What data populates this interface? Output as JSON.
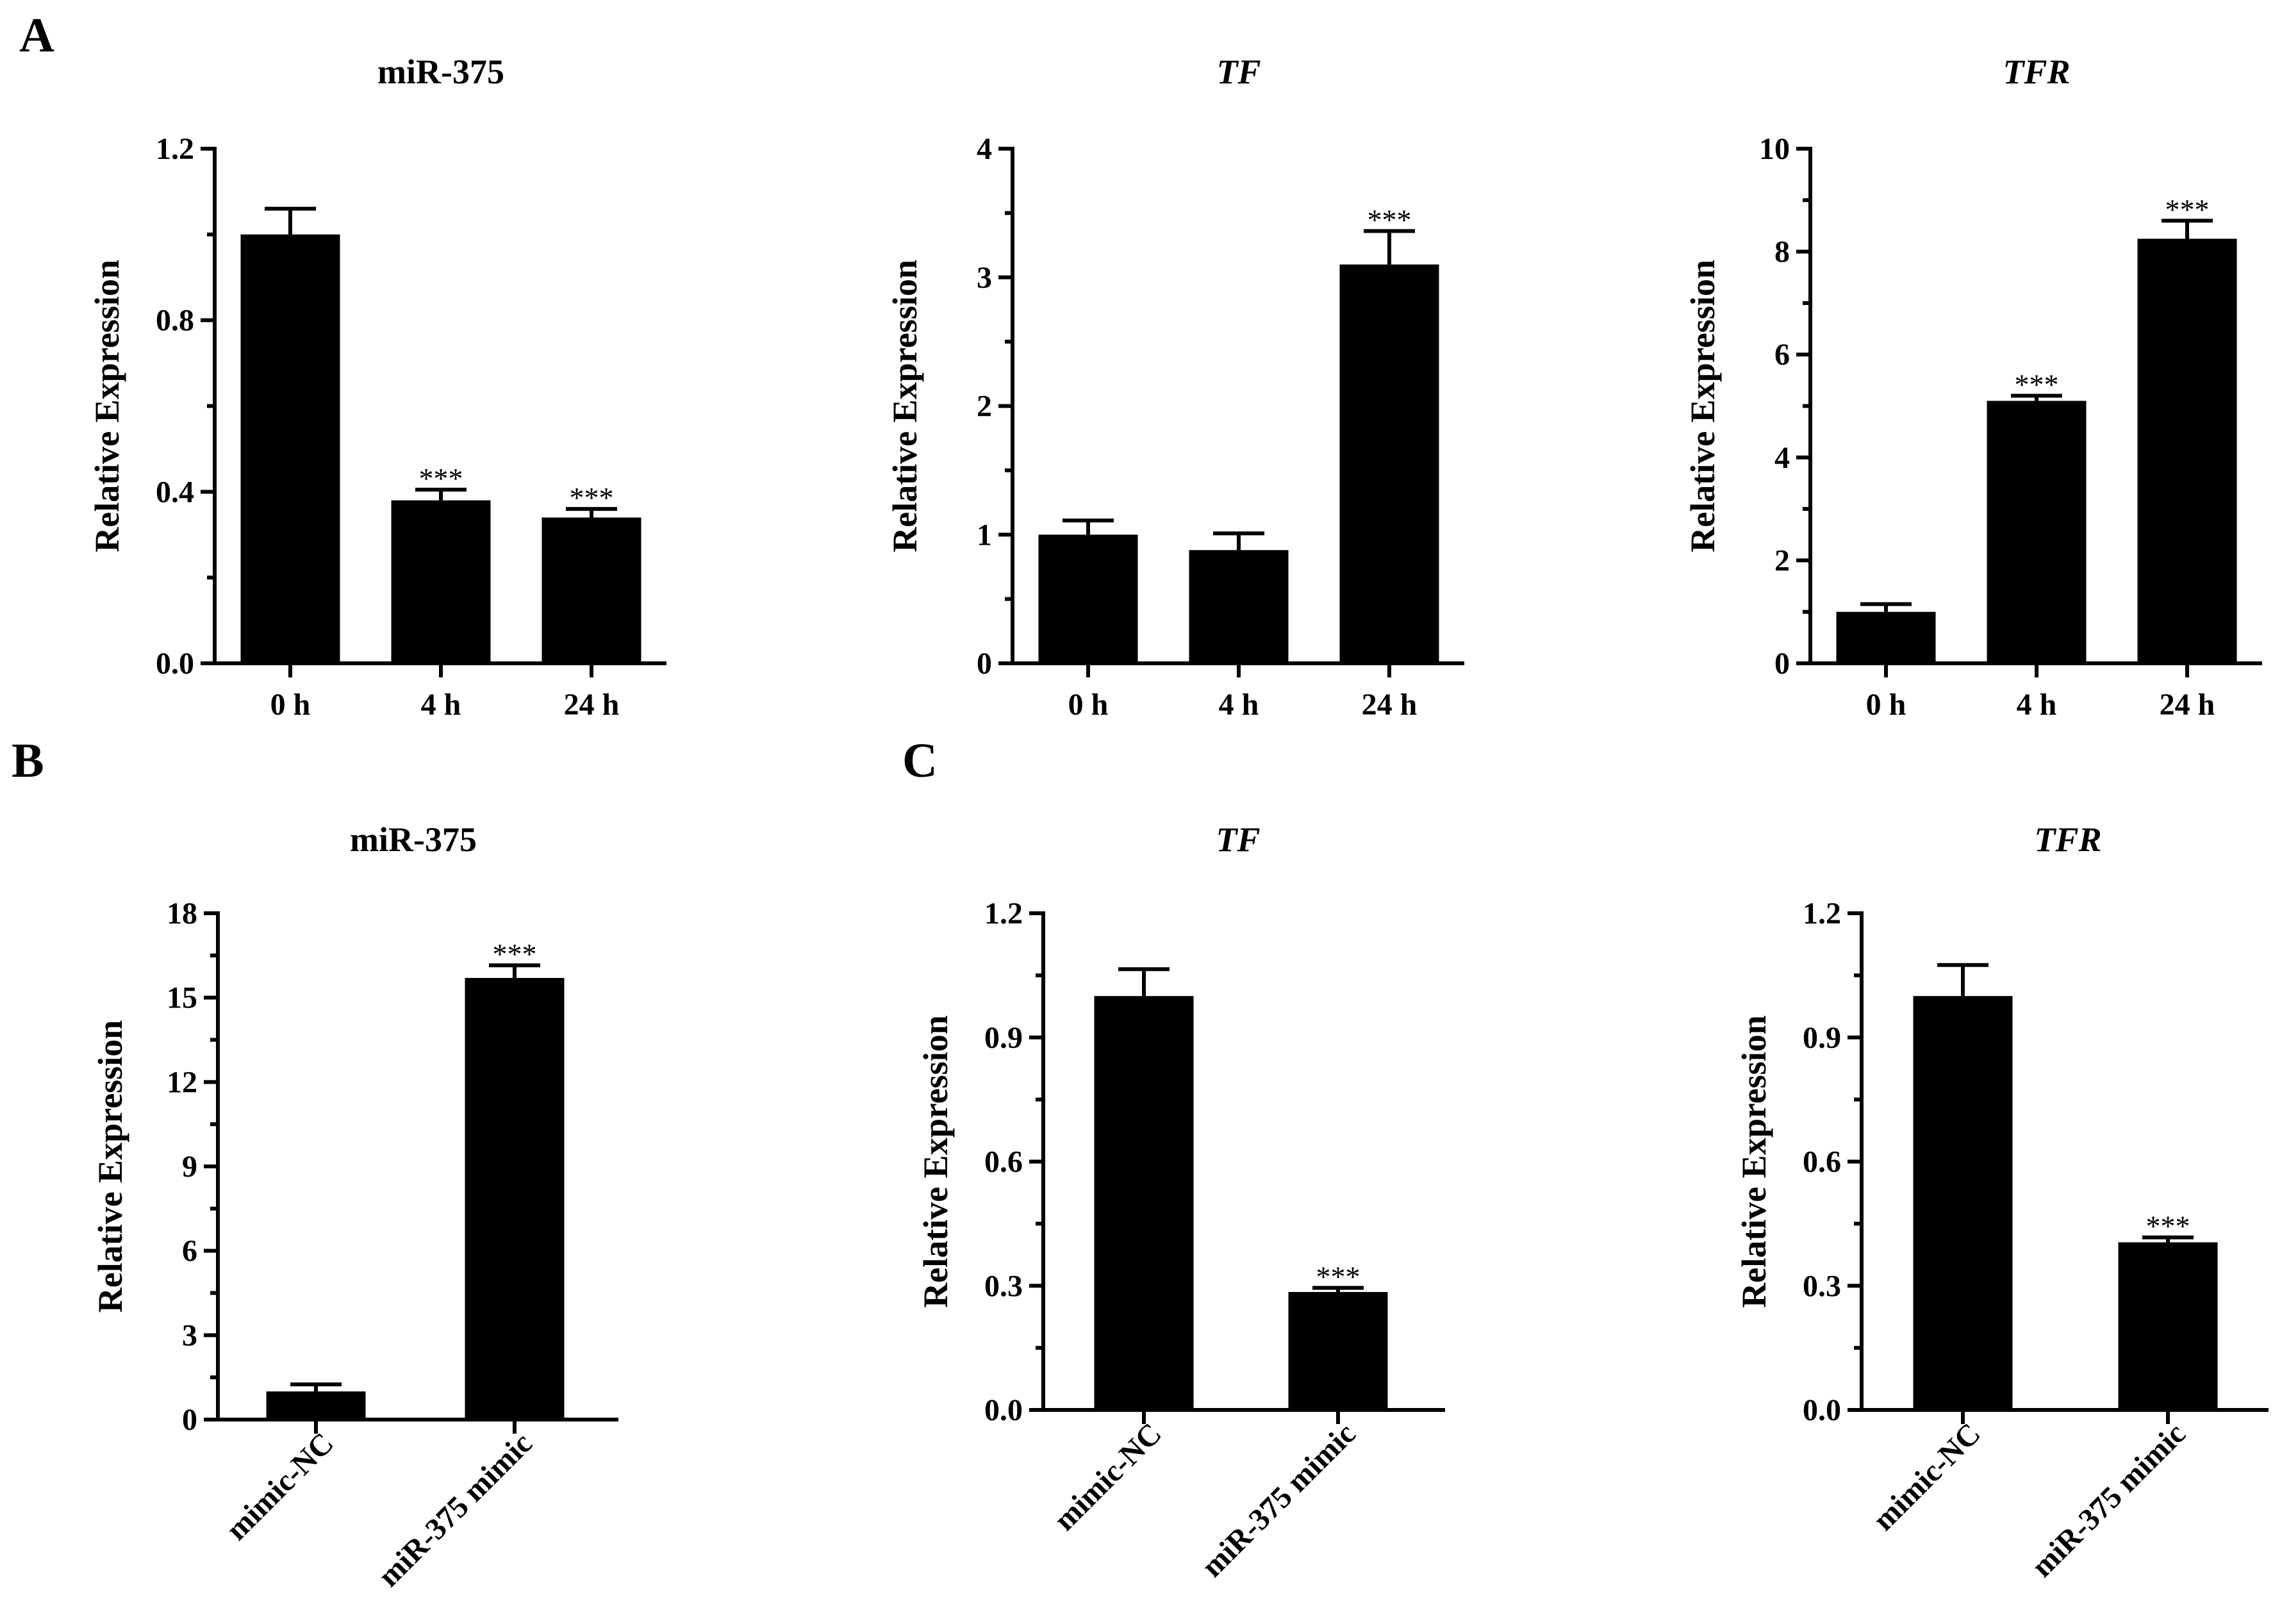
{
  "panel_labels": [
    "A",
    "B",
    "C"
  ],
  "chart_data": [
    {
      "type": "bar",
      "panel": "A",
      "title": "miR-375",
      "title_italic": false,
      "ylabel": "Relative Expression",
      "categories": [
        "0 h",
        "4 h",
        "24 h"
      ],
      "values": [
        1.0,
        0.38,
        0.34
      ],
      "errors": [
        0.06,
        0.025,
        0.02
      ],
      "significance": [
        "",
        "***",
        "***"
      ],
      "ylim": [
        0,
        1.2
      ],
      "yticks": [
        "0.0",
        "0.4",
        "0.8",
        "1.2"
      ],
      "ytick_values": [
        0,
        0.4,
        0.8,
        1.2
      ],
      "minor_ticks": 1
    },
    {
      "type": "bar",
      "panel": "A",
      "title": "TF",
      "title_italic": true,
      "ylabel": "Relative Expression",
      "categories": [
        "0 h",
        "4 h",
        "24 h"
      ],
      "values": [
        1.0,
        0.88,
        3.1
      ],
      "errors": [
        0.11,
        0.13,
        0.26
      ],
      "significance": [
        "",
        "",
        "***"
      ],
      "ylim": [
        0,
        4
      ],
      "yticks": [
        "0",
        "1",
        "2",
        "3",
        "4"
      ],
      "ytick_values": [
        0,
        1,
        2,
        3,
        4
      ],
      "minor_ticks": 1
    },
    {
      "type": "bar",
      "panel": "A",
      "title": "TFR",
      "title_italic": true,
      "ylabel": "Relative Expression",
      "categories": [
        "0 h",
        "4 h",
        "24 h"
      ],
      "values": [
        1.0,
        5.1,
        8.25
      ],
      "errors": [
        0.15,
        0.1,
        0.35
      ],
      "significance": [
        "",
        "***",
        "***"
      ],
      "ylim": [
        0,
        10
      ],
      "yticks": [
        "0",
        "2",
        "4",
        "6",
        "8",
        "10"
      ],
      "ytick_values": [
        0,
        2,
        4,
        6,
        8,
        10
      ],
      "minor_ticks": 1
    },
    {
      "type": "bar",
      "panel": "B",
      "title": "miR-375",
      "title_italic": false,
      "ylabel": "Relative Expression",
      "categories": [
        "mimic-NC",
        "miR-375 mimic"
      ],
      "values": [
        1.0,
        15.7
      ],
      "errors": [
        0.25,
        0.45
      ],
      "significance": [
        "",
        "***"
      ],
      "ylim": [
        0,
        18
      ],
      "yticks": [
        "0",
        "3",
        "6",
        "9",
        "12",
        "15",
        "18"
      ],
      "ytick_values": [
        0,
        3,
        6,
        9,
        12,
        15,
        18
      ],
      "minor_ticks": 1
    },
    {
      "type": "bar",
      "panel": "C",
      "title": "TF",
      "title_italic": true,
      "ylabel": "Relative Expression",
      "categories": [
        "mimic-NC",
        "miR-375 mimic"
      ],
      "values": [
        1.0,
        0.285
      ],
      "errors": [
        0.065,
        0.01
      ],
      "significance": [
        "",
        "***"
      ],
      "ylim": [
        0,
        1.2
      ],
      "yticks": [
        "0.0",
        "0.3",
        "0.6",
        "0.9",
        "1.2"
      ],
      "ytick_values": [
        0,
        0.3,
        0.6,
        0.9,
        1.2
      ],
      "minor_ticks": 1
    },
    {
      "type": "bar",
      "panel": "C",
      "title": "TFR",
      "title_italic": true,
      "ylabel": "Relative Expression",
      "categories": [
        "mimic-NC",
        "miR-375 mimic"
      ],
      "values": [
        1.0,
        0.405
      ],
      "errors": [
        0.075,
        0.012
      ],
      "significance": [
        "",
        "***"
      ],
      "ylim": [
        0,
        1.2
      ],
      "yticks": [
        "0.0",
        "0.3",
        "0.6",
        "0.9",
        "1.2"
      ],
      "ytick_values": [
        0,
        0.3,
        0.6,
        0.9,
        1.2
      ],
      "minor_ticks": 1
    }
  ]
}
